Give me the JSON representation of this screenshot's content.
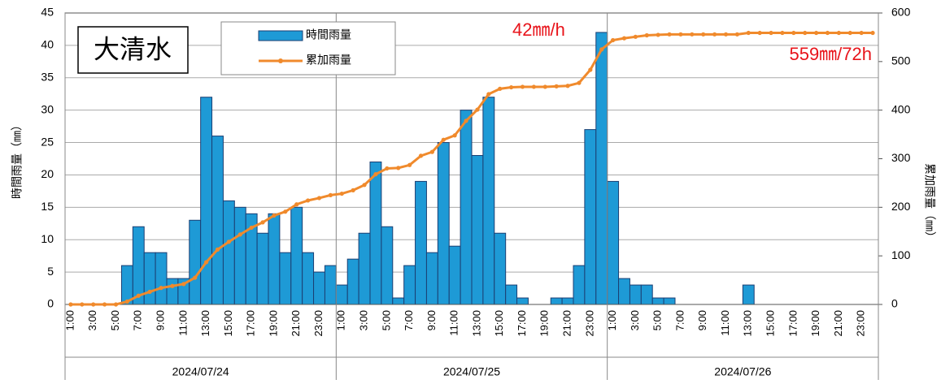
{
  "chart_data": {
    "type": "bar-line",
    "station": "大清水",
    "y_label": "時間雨量（㎜）",
    "y2_label": "累加雨量（㎜）",
    "annotations": [
      "42㎜/h",
      "559㎜/72h"
    ],
    "days": [
      "2024/07/24",
      "2024/07/25",
      "2024/07/26"
    ],
    "categories": [
      "1:00",
      null,
      "3:00",
      null,
      "5:00",
      null,
      "7:00",
      null,
      "9:00",
      null,
      "11:00",
      null,
      "13:00",
      null,
      "15:00",
      null,
      "17:00",
      null,
      "19:00",
      null,
      "21:00",
      null,
      "23:00",
      null,
      "1:00",
      null,
      "3:00",
      null,
      "5:00",
      null,
      "7:00",
      null,
      "9:00",
      null,
      "11:00",
      null,
      "13:00",
      null,
      "15:00",
      null,
      "17:00",
      null,
      "19:00",
      null,
      "21:00",
      null,
      "23:00",
      null,
      "1:00",
      null,
      "3:00",
      null,
      "5:00",
      null,
      "7:00",
      null,
      "9:00",
      null,
      "11:00",
      null,
      "13:00",
      null,
      "15:00",
      null,
      "17:00",
      null,
      "19:00",
      null,
      "21:00",
      null,
      "23:00",
      null
    ],
    "series": [
      {
        "name": "時間雨量",
        "color": "#1e9ad6",
        "axis": "y",
        "values": [
          0,
          0,
          0,
          0,
          0,
          6,
          12,
          8,
          8,
          4,
          4,
          13,
          32,
          26,
          16,
          15,
          14,
          11,
          14,
          8,
          15,
          8,
          5,
          6,
          3,
          7,
          11,
          22,
          12,
          1,
          6,
          19,
          8,
          25,
          9,
          30,
          23,
          32,
          11,
          3,
          1,
          0,
          0,
          1,
          1,
          6,
          27,
          42,
          19,
          4,
          3,
          3,
          1,
          1,
          0,
          0,
          0,
          0,
          0,
          0,
          3,
          0,
          0,
          0,
          0,
          0,
          0,
          0,
          0,
          0,
          0,
          0
        ]
      },
      {
        "name": "累加雨量",
        "color": "#f08a2c",
        "axis": "y2",
        "values": [
          0,
          0,
          0,
          0,
          0,
          6,
          18,
          26,
          34,
          38,
          42,
          55,
          87,
          113,
          129,
          144,
          158,
          169,
          183,
          191,
          206,
          214,
          219,
          225,
          228,
          235,
          246,
          268,
          280,
          281,
          287,
          306,
          314,
          339,
          348,
          378,
          401,
          433,
          444,
          447,
          448,
          448,
          448,
          449,
          450,
          456,
          483,
          525,
          544,
          548,
          551,
          554,
          555,
          556,
          556,
          556,
          556,
          556,
          556,
          556,
          559,
          559,
          559,
          559,
          559,
          559,
          559,
          559,
          559,
          559,
          559,
          559
        ]
      }
    ],
    "ylim": [
      0,
      45
    ],
    "yticks": [
      0,
      5,
      10,
      15,
      20,
      25,
      30,
      35,
      40,
      45
    ],
    "y2lim": [
      0,
      600
    ],
    "y2ticks": [
      0,
      100,
      200,
      300,
      400,
      500,
      600
    ],
    "grid": true
  }
}
